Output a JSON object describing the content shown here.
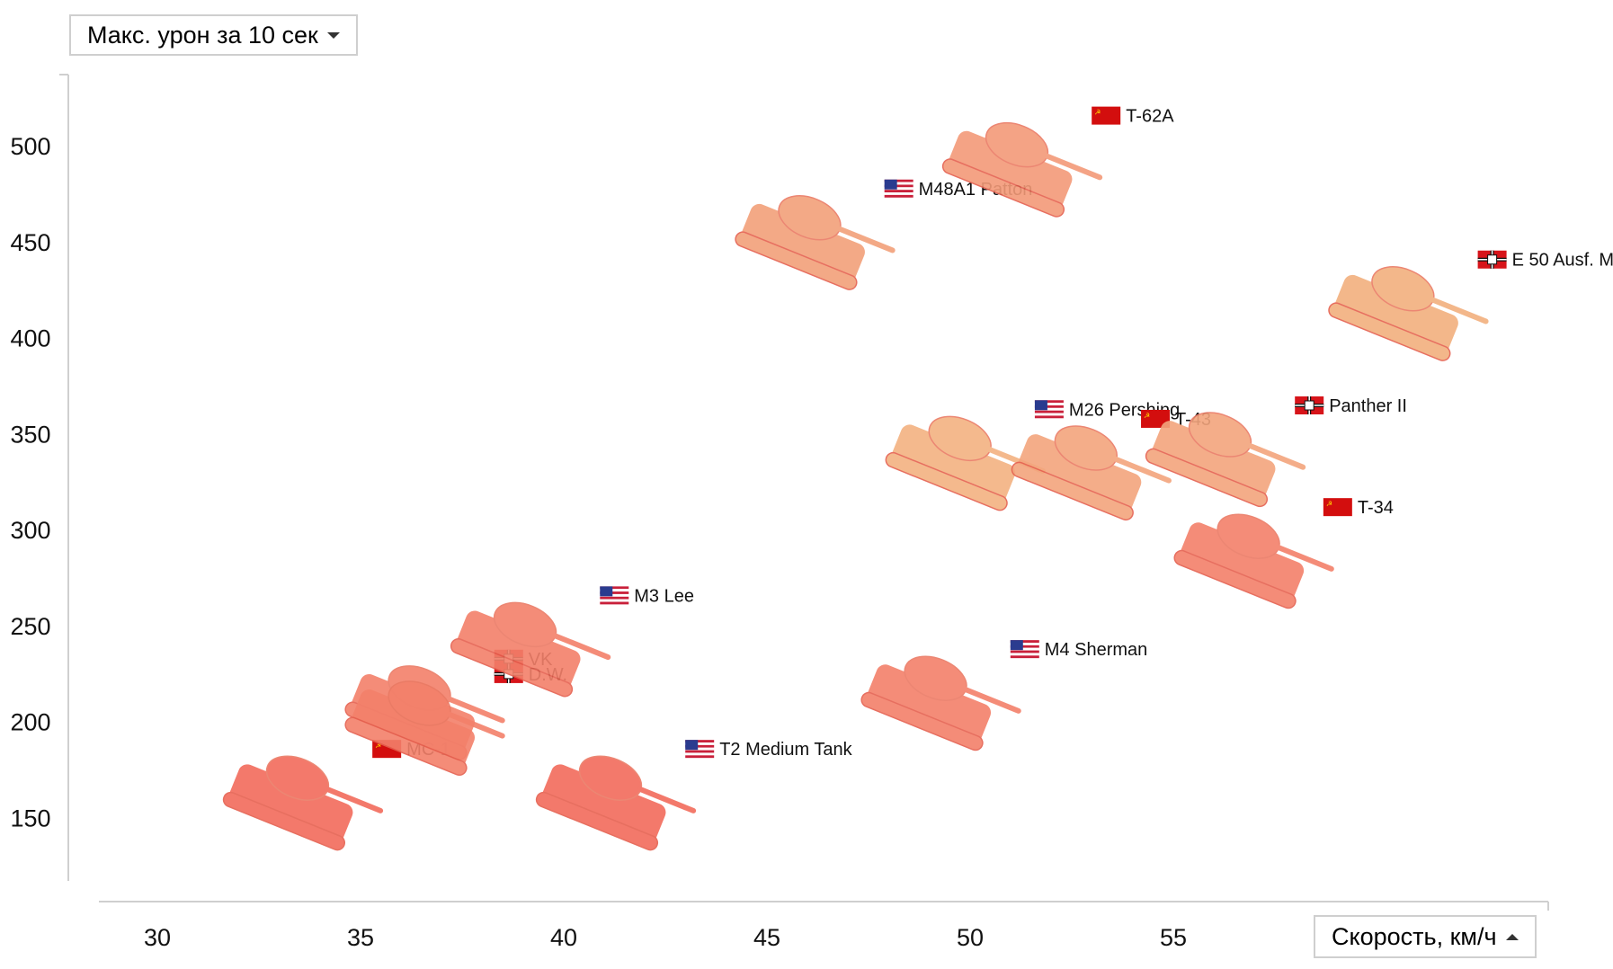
{
  "controls": {
    "y_metric_label": "Макс. урон за 10 сек",
    "x_metric_label": "Скорость, км/ч"
  },
  "chart_data": {
    "type": "scatter",
    "title": "",
    "xlabel": "Скорость, км/ч",
    "ylabel": "Макс. урон за 10 сек",
    "xlim": [
      28.5,
      65
    ],
    "ylim": [
      115,
      540
    ],
    "x_ticks": [
      30,
      35,
      40,
      45,
      50,
      55
    ],
    "y_ticks": [
      150,
      200,
      250,
      300,
      350,
      400,
      450,
      500
    ],
    "grid": false,
    "legend": "none",
    "points": [
      {
        "name": "MC-1",
        "nation": "USSR",
        "x": 33.3,
        "y": 158,
        "color": "#f26b5b",
        "flag_dx": 0
      },
      {
        "name": "VK",
        "nation": "Germany",
        "x": 36.3,
        "y": 205,
        "color": "#f3806a",
        "flag_dx": 0
      },
      {
        "name": "D.W.",
        "nation": "Germany",
        "x": 36.3,
        "y": 197,
        "color": "#f3806a",
        "flag_dx": 0
      },
      {
        "name": "M3 Lee",
        "nation": "USA",
        "x": 38.9,
        "y": 238,
        "color": "#f3806a",
        "flag_dx": 0
      },
      {
        "name": "T2 Medium Tank",
        "nation": "USA",
        "x": 41.0,
        "y": 158,
        "color": "#f26b5b",
        "flag_dx": 0
      },
      {
        "name": "M4 Sherman",
        "nation": "USA",
        "x": 49.0,
        "y": 210,
        "color": "#f3806a",
        "flag_dx": 0
      },
      {
        "name": "M48A1 Patton",
        "nation": "USA",
        "x": 45.9,
        "y": 450,
        "color": "#f2a07a",
        "flag_dx": 0
      },
      {
        "name": "T-62A",
        "nation": "USSR",
        "x": 51.0,
        "y": 488,
        "color": "#f39a78",
        "flag_dx": 0
      },
      {
        "name": "E 50 Ausf. M",
        "nation": "Germany",
        "x": 60.5,
        "y": 413,
        "color": "#f2b07e",
        "flag_dx": 0
      },
      {
        "name": "M26 Pershing",
        "nation": "USA",
        "x": 49.6,
        "y": 335,
        "color": "#f3b281",
        "flag_dx": 0
      },
      {
        "name": "T-43",
        "nation": "USSR",
        "x": 52.7,
        "y": 330,
        "color": "#f3a57d",
        "flag_dx": -22
      },
      {
        "name": "Panther II",
        "nation": "Germany",
        "x": 56.0,
        "y": 337,
        "color": "#f3a57d",
        "flag_dx": 0
      },
      {
        "name": "T-34",
        "nation": "USSR",
        "x": 56.7,
        "y": 284,
        "color": "#f3806a",
        "flag_dx": 0
      }
    ]
  }
}
